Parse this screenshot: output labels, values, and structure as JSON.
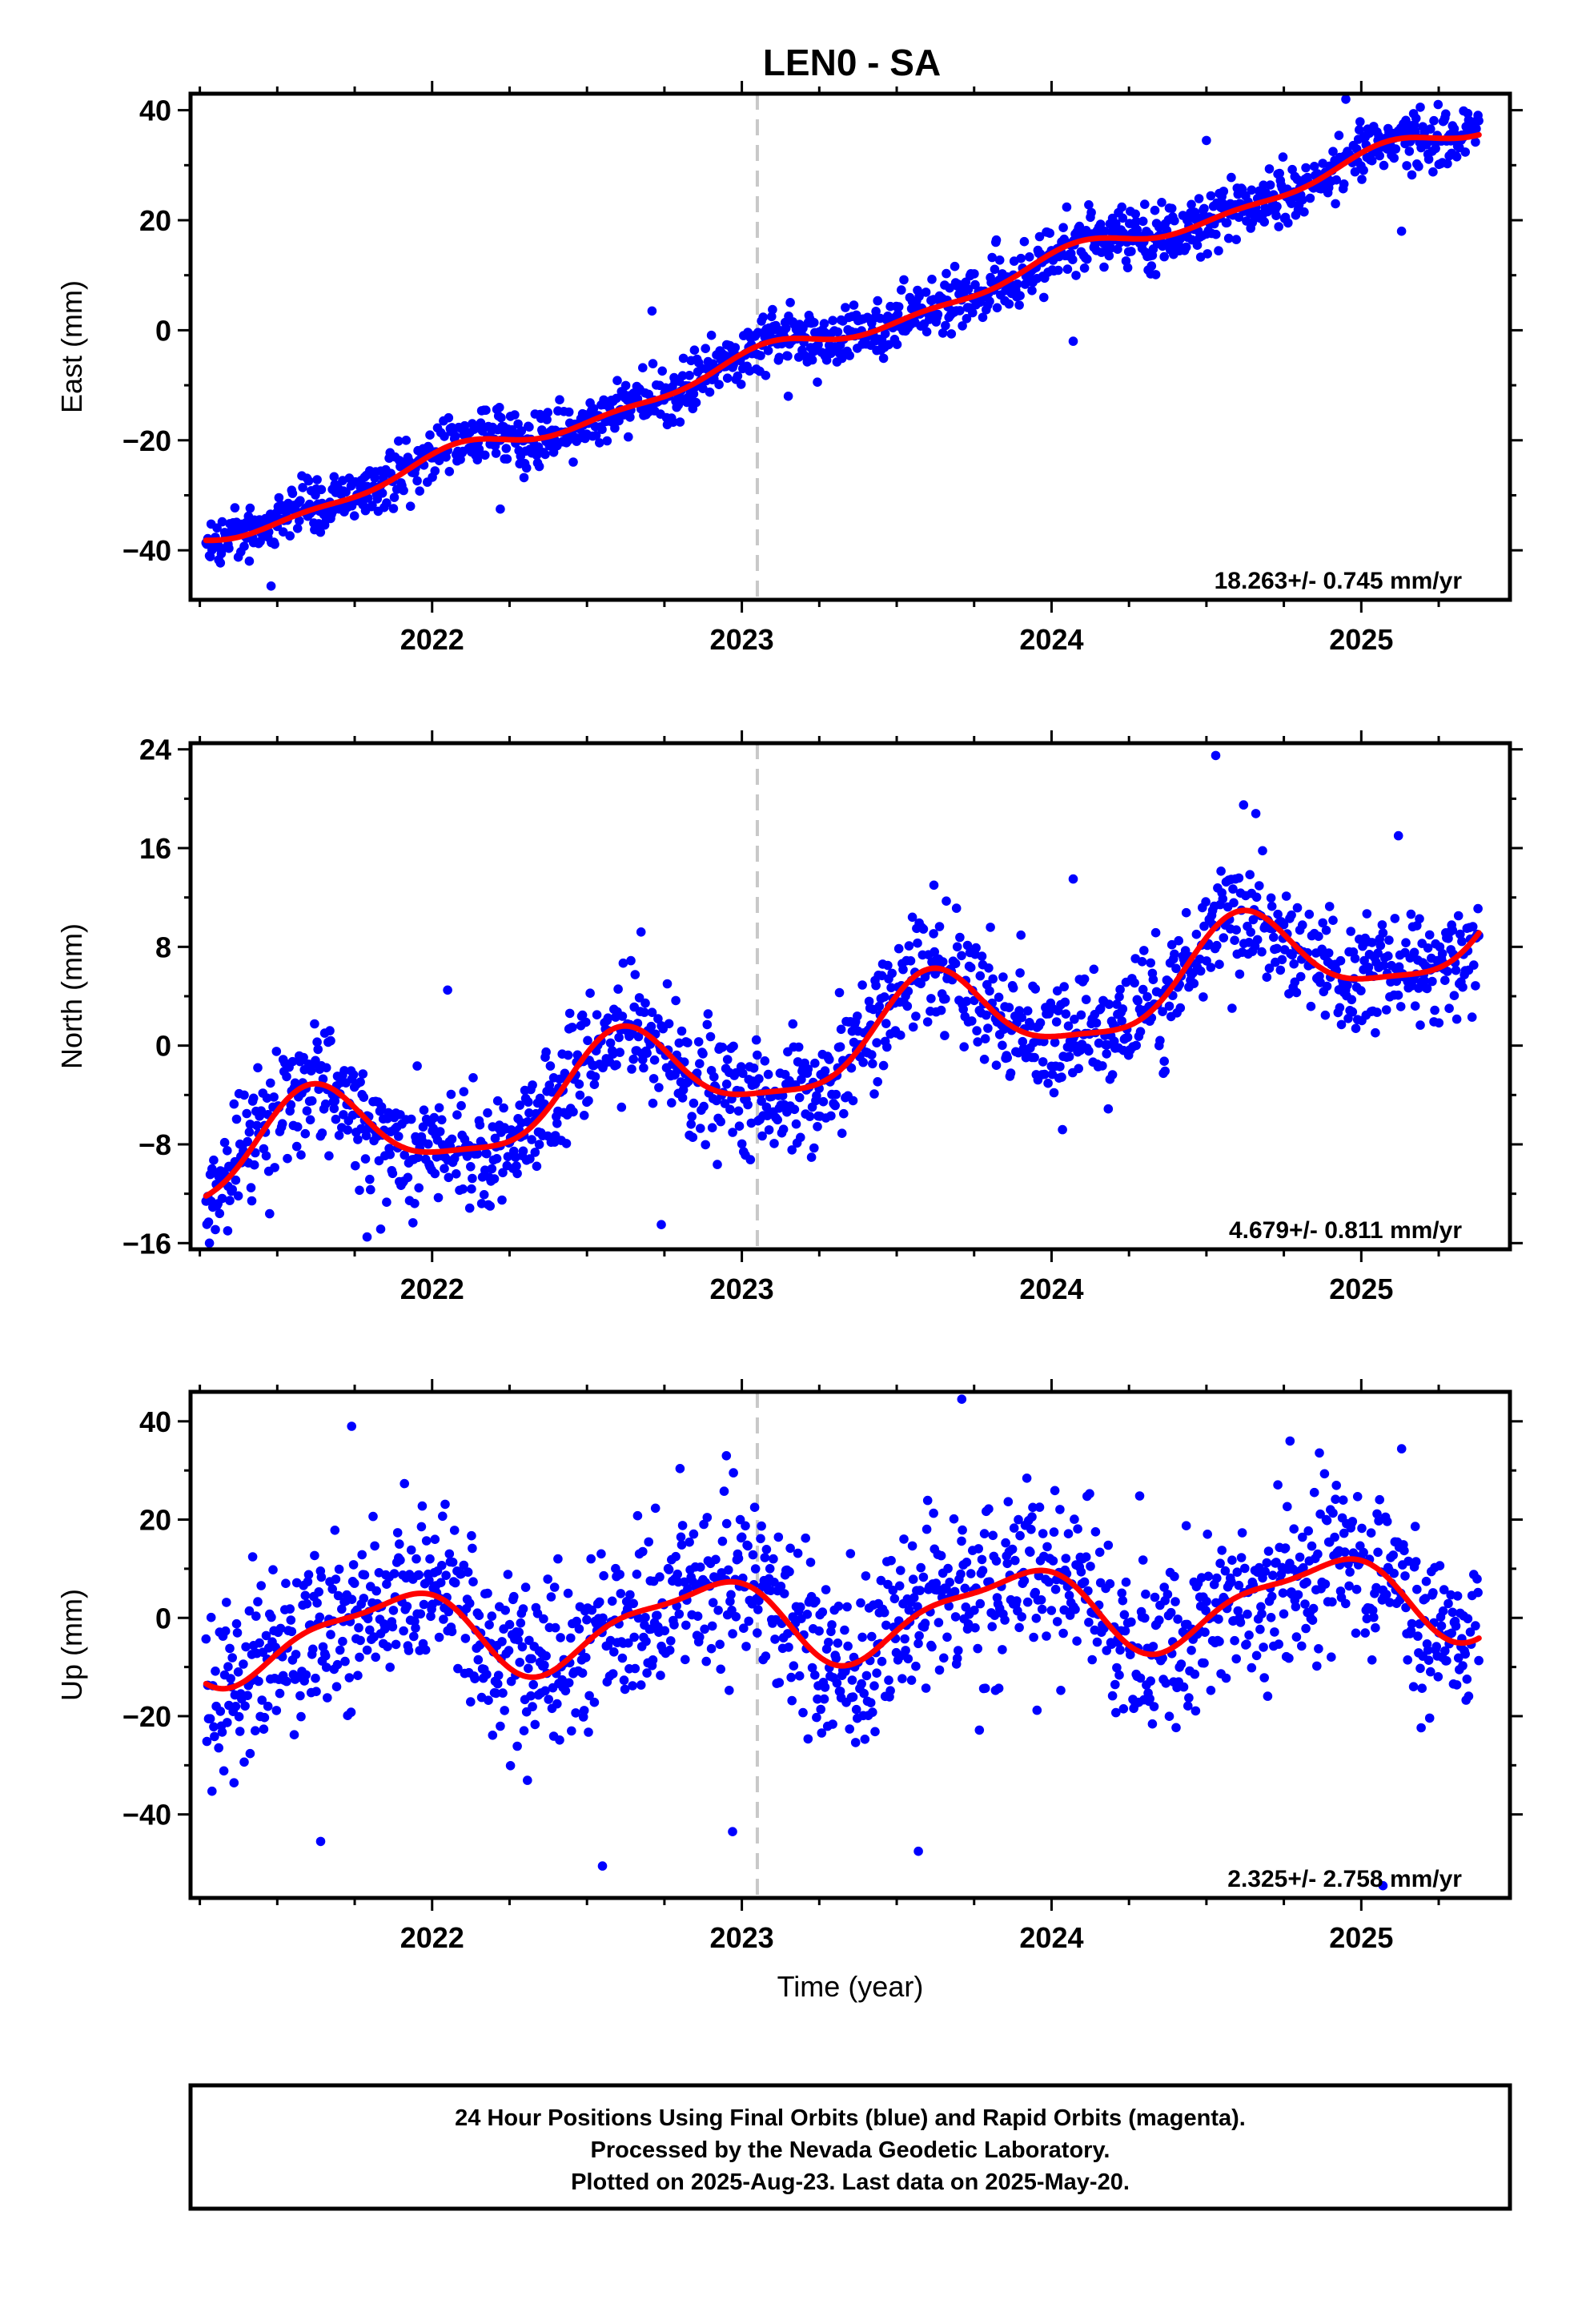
{
  "title": "LEN0 - SA",
  "xlabel": "Time (year)",
  "footer": [
    "24 Hour Positions Using Final Orbits (blue) and Rapid Orbits (magenta).",
    "Processed by the Nevada Geodetic Laboratory.",
    "Plotted on 2025-Aug-23. Last data on 2025-May-20."
  ],
  "colors": {
    "points": "#0000ff",
    "fit": "#ff0000",
    "marker": "#c8c8c8",
    "frame": "#000000"
  },
  "chart_data": [
    {
      "type": "scatter",
      "ylabel": "East (mm)",
      "rate_label": "18.263+/- 0.745 mm/yr",
      "xlim": [
        2021.22,
        2025.48
      ],
      "ylim": [
        -49,
        43
      ],
      "yticks": [
        -40,
        -20,
        0,
        20,
        40
      ],
      "xticks": [
        2022,
        2023,
        2024,
        2025
      ],
      "vline": 2023.05,
      "x_start": 2021.27,
      "x_end": 2025.38,
      "trend": {
        "slope": 18.263,
        "value_at_start": -38.0
      },
      "seasonal": {
        "annual_amp": 1.8,
        "annual_phase": 1.2,
        "semi_amp": 0.9,
        "semi_phase": 0.5
      },
      "noise_sd": 2.6,
      "outliers": [
        {
          "x": 2021.48,
          "y": -46.5
        },
        {
          "x": 2021.93,
          "y": -32.0
        },
        {
          "x": 2022.22,
          "y": -32.5
        },
        {
          "x": 2022.71,
          "y": 3.5
        },
        {
          "x": 2023.15,
          "y": -12.0
        },
        {
          "x": 2023.82,
          "y": 16.0
        },
        {
          "x": 2024.07,
          "y": -2.0
        },
        {
          "x": 2024.5,
          "y": 34.5
        },
        {
          "x": 2024.95,
          "y": 42.0
        },
        {
          "x": 2025.13,
          "y": 18.0
        }
      ]
    },
    {
      "type": "scatter",
      "ylabel": "North (mm)",
      "rate_label": "4.679+/- 0.811 mm/yr",
      "xlim": [
        2021.22,
        2025.48
      ],
      "ylim": [
        -16.5,
        24.5
      ],
      "yticks": [
        -16,
        -8,
        0,
        8,
        16,
        24
      ],
      "xticks": [
        2022,
        2023,
        2024,
        2025
      ],
      "vline": 2023.05,
      "x_start": 2021.27,
      "x_end": 2025.38,
      "trend": {
        "slope": 4.679,
        "value_at_start": -9.5
      },
      "seasonal": {
        "annual_amp": 3.8,
        "annual_phase": -2.3,
        "semi_amp": 1.0,
        "semi_phase": 0.3
      },
      "noise_sd": 2.4,
      "outliers": [
        {
          "x": 2021.34,
          "y": -15.0
        },
        {
          "x": 2021.79,
          "y": -15.5
        },
        {
          "x": 2022.05,
          "y": 4.5
        },
        {
          "x": 2022.74,
          "y": -14.5
        },
        {
          "x": 2023.62,
          "y": 13.0
        },
        {
          "x": 2024.07,
          "y": 13.5
        },
        {
          "x": 2024.53,
          "y": 23.5
        },
        {
          "x": 2024.62,
          "y": 19.5
        },
        {
          "x": 2025.12,
          "y": 17.0
        }
      ]
    },
    {
      "type": "scatter",
      "ylabel": "Up (mm)",
      "rate_label": "2.325+/- 2.758 mm/yr",
      "xlim": [
        2021.22,
        2025.48
      ],
      "ylim": [
        -57,
        46
      ],
      "yticks": [
        -40,
        -20,
        0,
        20,
        40
      ],
      "xticks": [
        2022,
        2023,
        2024,
        2025
      ],
      "vline": 2023.05,
      "x_start": 2021.27,
      "x_end": 2025.38,
      "trend": {
        "slope": 2.325,
        "value_at_start": -4.5
      },
      "seasonal": {
        "annual_amp": 8.0,
        "annual_phase": 2.4,
        "semi_amp": 2.5,
        "semi_phase": 1.0
      },
      "noise_sd": 9.0,
      "outliers": [
        {
          "x": 2021.64,
          "y": -45.5
        },
        {
          "x": 2021.74,
          "y": 39.0
        },
        {
          "x": 2022.55,
          "y": -50.5
        },
        {
          "x": 2022.95,
          "y": 33.0
        },
        {
          "x": 2022.97,
          "y": -43.5
        },
        {
          "x": 2023.57,
          "y": -47.5
        },
        {
          "x": 2023.71,
          "y": 44.5
        },
        {
          "x": 2024.77,
          "y": 36.0
        },
        {
          "x": 2025.07,
          "y": -54.5
        }
      ]
    }
  ]
}
